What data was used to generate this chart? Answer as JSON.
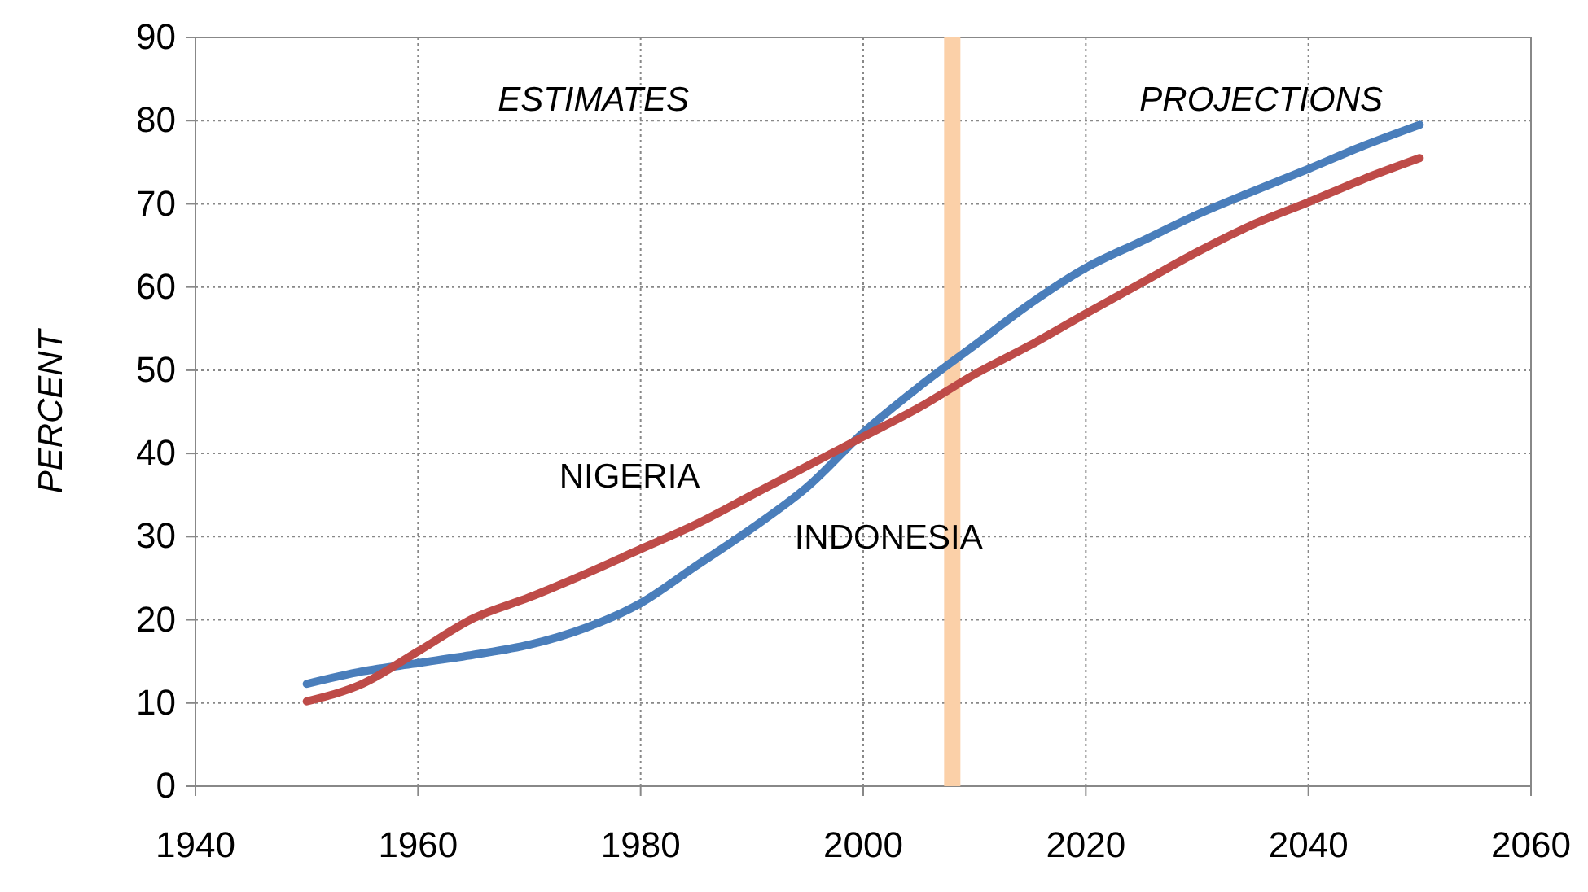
{
  "chart_data": {
    "type": "line",
    "ylabel": "PERCENT",
    "x": [
      1950,
      1955,
      1960,
      1965,
      1970,
      1975,
      1980,
      1985,
      1990,
      1995,
      2000,
      2005,
      2010,
      2015,
      2020,
      2025,
      2030,
      2035,
      2040,
      2045,
      2050
    ],
    "series": [
      {
        "name": "INDONESIA",
        "color": "#4a7ebb",
        "values": [
          12.3,
          13.8,
          14.8,
          15.8,
          17,
          19,
          22,
          26.5,
          31,
          36,
          42.5,
          48,
          53,
          58,
          62.3,
          65.5,
          68.7,
          71.5,
          74.2,
          77,
          79.5
        ]
      },
      {
        "name": "NIGERIA",
        "color": "#be4b48",
        "values": [
          10.2,
          12.3,
          16.2,
          20.2,
          22.7,
          25.5,
          28.5,
          31.5,
          35,
          38.5,
          42,
          45.5,
          49.5,
          53,
          56.8,
          60.5,
          64.2,
          67.5,
          70.2,
          73,
          75.5
        ]
      }
    ],
    "xlim": [
      1940,
      2060
    ],
    "xticks": [
      1940,
      1960,
      1980,
      2000,
      2020,
      2040,
      2060
    ],
    "ylim": [
      0,
      90
    ],
    "yticks": [
      0,
      10,
      20,
      30,
      40,
      50,
      60,
      70,
      80,
      90
    ],
    "grid": true,
    "legend": false,
    "marker": "none",
    "line_style": "solid",
    "ref_lines": [
      {
        "axis": "x",
        "value": 2008,
        "color": "#fbd0a8"
      }
    ],
    "annotations": [
      "ESTIMATES",
      "PROJECTIONS"
    ]
  }
}
